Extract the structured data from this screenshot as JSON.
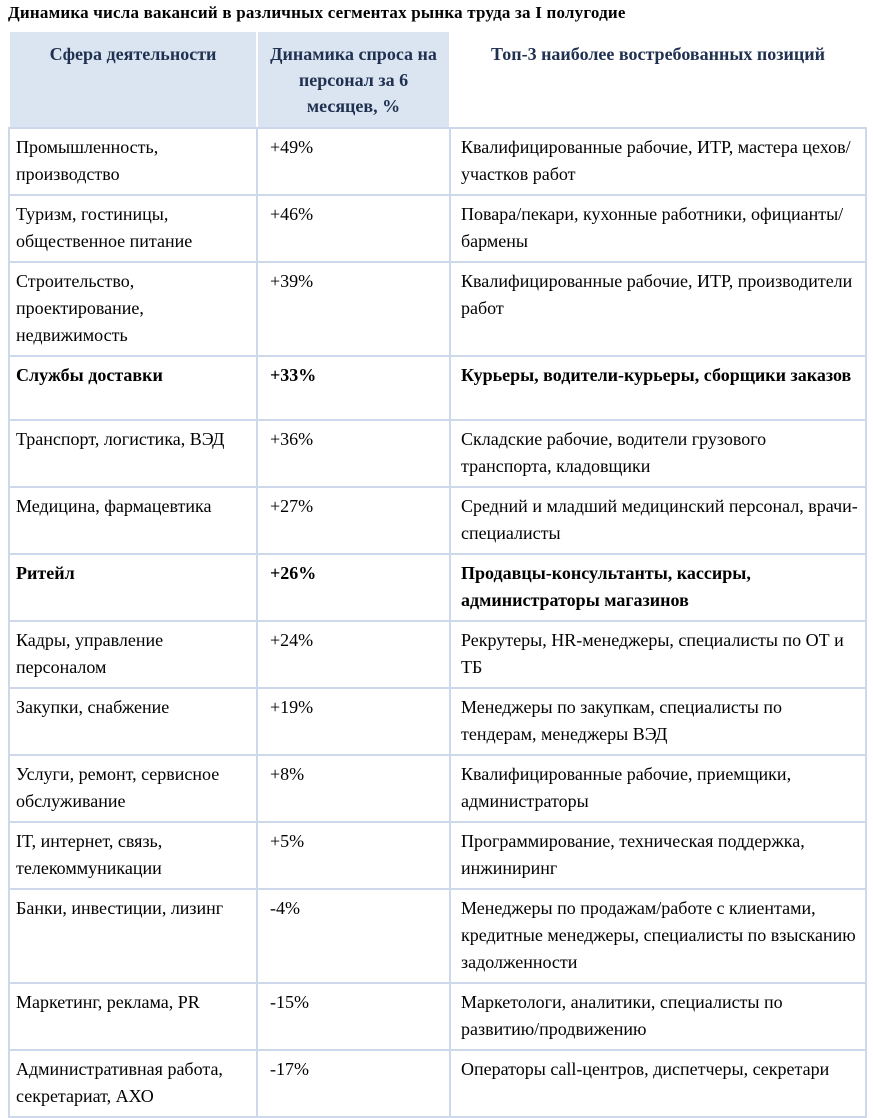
{
  "title": "Динамика числа вакансий в различных сегментах рынка труда за I полугодие",
  "table": {
    "headers": [
      "Сфера деятельности",
      "Динамика спроса на персонал за  6 месяцев, %",
      "Топ-3 наиболее востребованных позиций"
    ],
    "rows": [
      {
        "sector": "Промышленность, производство",
        "dynamics": "+49%",
        "top3": "Квалифицированные рабочие, ИТР, мастера цехов/участков работ",
        "bold": false
      },
      {
        "sector": "Туризм, гостиницы, общественное питание",
        "dynamics": "+46%",
        "top3": "Повара/пекари, кухонные работники, официанты/бармены",
        "bold": false
      },
      {
        "sector": "Строительство, проектирование, недвижимость",
        "dynamics": "+39%",
        "top3": "Квалифицированные рабочие, ИТР, производители работ",
        "bold": false
      },
      {
        "sector": "Службы доставки",
        "dynamics": "+33%",
        "top3": "Курьеры, водители-курьеры, сборщики заказов",
        "bold": true
      },
      {
        "sector": "Транспорт, логистика, ВЭД",
        "dynamics": "+36%",
        "top3": "Складские рабочие, водители грузового транспорта, кладовщики",
        "bold": false
      },
      {
        "sector": "Медицина, фармацевтика",
        "dynamics": "+27%",
        "top3": "Средний и младший медицинский персонал, врачи-специалисты",
        "bold": false
      },
      {
        "sector": "Ритейл",
        "dynamics": "+26%",
        "top3": "Продавцы-консультанты, кассиры, администраторы магазинов",
        "bold": true
      },
      {
        "sector": "Кадры, управление персоналом",
        "dynamics": "+24%",
        "top3": "Рекрутеры, HR-менеджеры, специалисты по ОТ и ТБ",
        "bold": false
      },
      {
        "sector": "Закупки, снабжение",
        "dynamics": "+19%",
        "top3": "Менеджеры по закупкам, специалисты по тендерам, менеджеры ВЭД",
        "bold": false
      },
      {
        "sector": "Услуги, ремонт, сервисное обслуживание",
        "dynamics": "+8%",
        "top3": "Квалифицированные рабочие, приемщики, администраторы",
        "bold": false
      },
      {
        "sector": "IT, интернет, связь, телекоммуникации",
        "dynamics": "+5%",
        "top3": "Программирование, техническая поддержка, инжиниринг",
        "bold": false
      },
      {
        "sector": "Банки, инвестиции, лизинг",
        "dynamics": "-4%",
        "top3": "Менеджеры по продажам/работе с клиентами, кредитные менеджеры, специалисты по взысканию задолженности",
        "bold": false
      },
      {
        "sector": "Маркетинг, реклама, PR",
        "dynamics": "-15%",
        "top3": "Маркетологи, аналитики, специалисты по развитию/продвижению",
        "bold": false
      },
      {
        "sector": "Административная работа, секретариат, АХО",
        "dynamics": "-17%",
        "top3": "Операторы call-центров, диспетчеры, секретари",
        "bold": false
      }
    ]
  },
  "colors": {
    "header_bg": "#dbe5f1",
    "border": "#cdd9ea",
    "header_text": "#1f3050",
    "body_text": "#000000"
  }
}
